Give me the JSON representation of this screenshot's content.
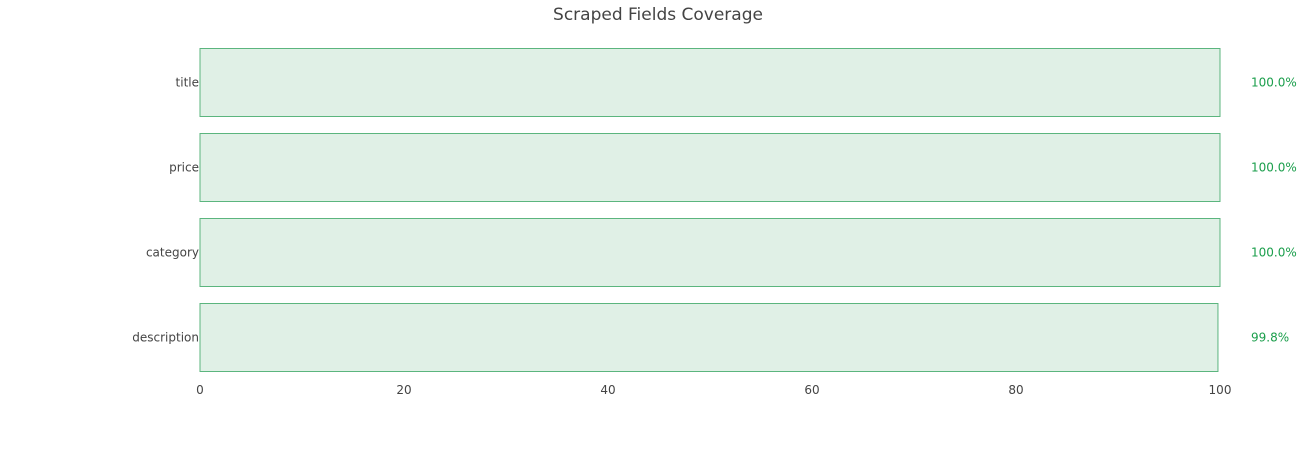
{
  "chart_data": {
    "type": "bar",
    "orientation": "horizontal",
    "title": "Scraped Fields Coverage",
    "xlabel": "",
    "ylabel": "",
    "xlim": [
      0,
      100
    ],
    "x_ticks": [
      "0",
      "20",
      "40",
      "60",
      "80",
      "100"
    ],
    "categories": [
      "title",
      "price",
      "category",
      "description"
    ],
    "values": [
      100.0,
      100.0,
      100.0,
      99.8
    ],
    "value_labels": [
      "100.0%",
      "100.0%",
      "100.0%",
      "99.8%"
    ],
    "grid": false,
    "legend": "none",
    "colors": {
      "bar_fill": "#e0f0e6",
      "bar_stroke": "#5bb57e",
      "value_label": "#1a9e4b",
      "text": "#444444"
    }
  }
}
